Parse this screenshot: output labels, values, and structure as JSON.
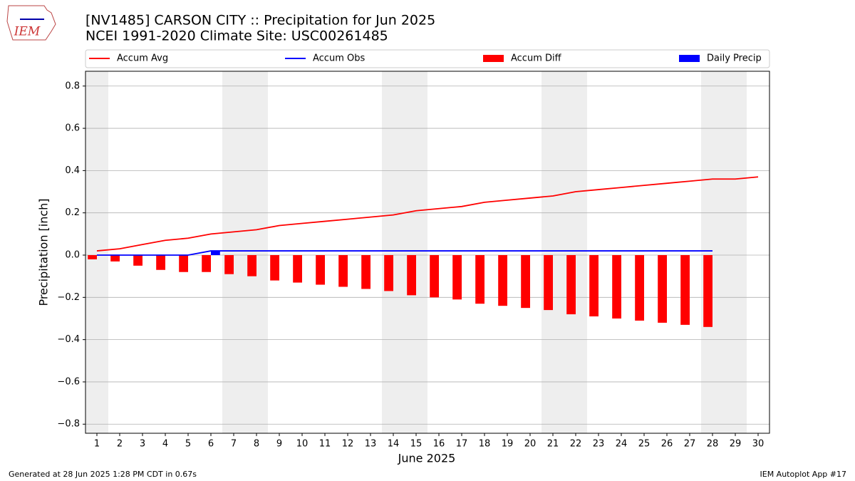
{
  "logo": "IEM",
  "chart_data": {
    "type": "line",
    "title": "[NV1485] CARSON CITY :: Precipitation for Jun 2025",
    "subtitle": "NCEI 1991-2020 Climate Site: USC00261485",
    "x_label": "June 2025",
    "y_label": "Precipitation [inch]",
    "x": [
      1,
      2,
      3,
      4,
      5,
      6,
      7,
      8,
      9,
      10,
      11,
      12,
      13,
      14,
      15,
      16,
      17,
      18,
      19,
      20,
      21,
      22,
      23,
      24,
      25,
      26,
      27,
      28,
      29,
      30
    ],
    "xlim": [
      0.5,
      30.5
    ],
    "xticks": [
      1,
      2,
      3,
      4,
      5,
      6,
      7,
      8,
      9,
      10,
      11,
      12,
      13,
      14,
      15,
      16,
      17,
      18,
      19,
      20,
      21,
      22,
      23,
      24,
      25,
      26,
      27,
      28,
      29,
      30
    ],
    "ylim": [
      -0.843,
      0.87
    ],
    "yticks": [
      {
        "value": -0.8,
        "label": "−0.8"
      },
      {
        "value": -0.6,
        "label": "−0.6"
      },
      {
        "value": -0.4,
        "label": "−0.4"
      },
      {
        "value": -0.2,
        "label": "−0.2"
      },
      {
        "value": 0,
        "label": "0.0"
      },
      {
        "value": 0.2,
        "label": "0.2"
      },
      {
        "value": 0.4,
        "label": "0.4"
      },
      {
        "value": 0.6,
        "label": "0.6"
      },
      {
        "value": 0.8,
        "label": "0.8"
      }
    ],
    "grid": true,
    "shaded_days": [
      1,
      7,
      8,
      14,
      15,
      21,
      22,
      28,
      29
    ],
    "shade_color": "#eeeeee",
    "series": [
      {
        "name": "Accum Avg",
        "type": "line",
        "color": "#ff0000",
        "values": [
          0.02,
          0.03,
          0.05,
          0.07,
          0.08,
          0.1,
          0.11,
          0.12,
          0.14,
          0.15,
          0.16,
          0.17,
          0.18,
          0.19,
          0.21,
          0.22,
          0.23,
          0.25,
          0.26,
          0.27,
          0.28,
          0.3,
          0.31,
          0.32,
          0.33,
          0.34,
          0.35,
          0.36,
          0.36,
          0.37
        ]
      },
      {
        "name": "Accum Obs",
        "type": "line",
        "color": "#0000ff",
        "values": [
          0,
          0,
          0,
          0,
          0,
          0.02,
          0.02,
          0.02,
          0.02,
          0.02,
          0.02,
          0.02,
          0.02,
          0.02,
          0.02,
          0.02,
          0.02,
          0.02,
          0.02,
          0.02,
          0.02,
          0.02,
          0.02,
          0.02,
          0.02,
          0.02,
          0.02,
          0.02,
          null,
          null
        ]
      },
      {
        "name": "Accum Diff",
        "type": "bar",
        "color": "#ff0000",
        "offset": -0.2,
        "values": [
          -0.02,
          -0.03,
          -0.05,
          -0.07,
          -0.08,
          -0.08,
          -0.09,
          -0.1,
          -0.12,
          -0.13,
          -0.14,
          -0.15,
          -0.16,
          -0.17,
          -0.19,
          -0.2,
          -0.21,
          -0.23,
          -0.24,
          -0.25,
          -0.26,
          -0.28,
          -0.29,
          -0.3,
          -0.31,
          -0.32,
          -0.33,
          -0.34,
          null,
          null
        ]
      },
      {
        "name": "Daily Precip",
        "type": "bar",
        "color": "#0000ff",
        "offset": 0.2,
        "values": [
          0,
          0,
          0,
          0,
          0,
          0.02,
          0,
          0,
          0,
          0,
          0,
          0,
          0,
          0,
          0,
          0,
          0,
          0,
          0,
          0,
          0,
          0,
          0,
          0,
          0,
          0,
          0,
          0,
          null,
          null
        ]
      }
    ],
    "footer_left": "Generated at 28 Jun 2025 1:28 PM CDT in 0.67s",
    "footer_right": "IEM Autoplot App #17"
  }
}
